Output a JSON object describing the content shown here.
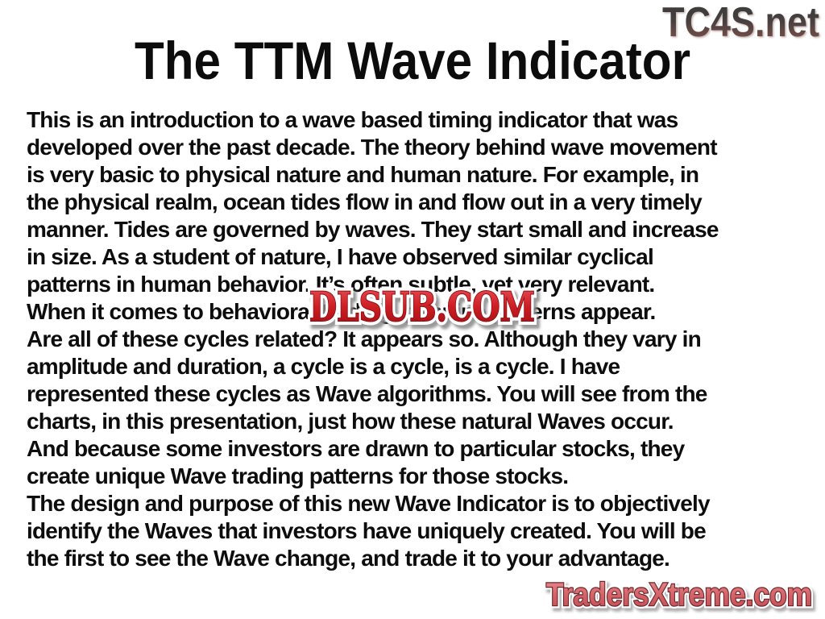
{
  "slide": {
    "background_color": "#ffffff",
    "body_text_color": "#0d0d0d"
  },
  "header": {
    "site_logo": "TC4S.net",
    "site_logo_top_color": "#3a3838",
    "site_logo_bottom_color": "#8a625a",
    "title": "The TTM Wave Indicator"
  },
  "body": {
    "lines": [
      "This is an introduction to a wave based timing indicator that was",
      "developed over the past decade. The theory behind wave movement",
      "is very basic to physical nature and human nature. For example, in",
      "the physical realm, ocean tides flow in and flow out in a very timely",
      "manner. Tides are governed by waves. They start small and increase",
      "in size. As a student of nature, I have observed similar cyclical",
      "patterns in human behavior. It’s often subtle, yet very relevant.",
      "When it comes to behavioral trading, genuine patterns appear.",
      "Are all of these cycles related? It appears so. Although they vary in",
      "amplitude and duration, a cycle is a cycle, is a cycle. I have",
      "represented these cycles as Wave algorithms. You will see from the",
      "charts, in this presentation, just how these natural Waves occur.",
      "And because some investors are drawn to particular stocks, they",
      "create unique Wave trading patterns for those stocks.",
      "The design and purpose of this new Wave Indicator is to objectively",
      "identify the Waves that investors have uniquely created. You will be",
      "the first to see the Wave change, and trade it to your advantage."
    ]
  },
  "watermark": {
    "text": "DLSUB.COM",
    "fill_color": "#ce1d24",
    "outline_color": "#ffffff",
    "shadow_color": "#8f8f8f"
  },
  "footer": {
    "site_logo": "TradersXtreme.com",
    "fill_color": "#d4646a",
    "outline_color": "#6f262b",
    "outer_outline_color": "#ffffff"
  }
}
